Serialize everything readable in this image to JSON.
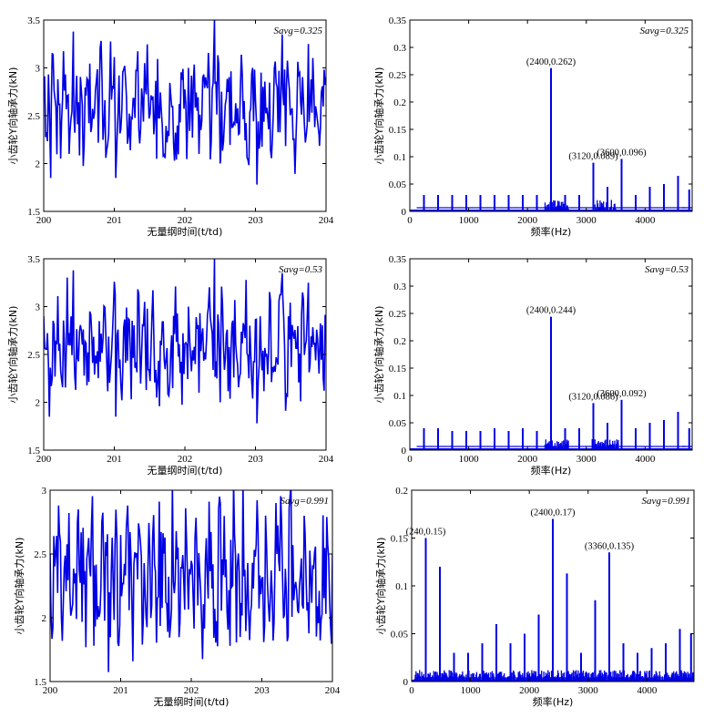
{
  "chart_data": [
    {
      "id": "p1",
      "type": "line",
      "xlabel": "无量纲时间(t/td)",
      "ylabel": "小齿轮Y向轴承力(kN)",
      "xlim": [
        200,
        204
      ],
      "ylim": [
        1.5,
        3.5
      ],
      "xticks": [
        "200",
        "201",
        "202",
        "203",
        "204"
      ],
      "yticks": [
        "1.5",
        "2",
        "2.5",
        "3",
        "3.5"
      ],
      "annotation": "Savg=0.325",
      "signal": {
        "mean": 2.6,
        "amp": 0.42,
        "seed": 3
      },
      "series": [
        {
          "color": "#0000e6",
          "points": [
            [
              200.0,
              2.9
            ],
            [
              200.1,
              1.85
            ],
            [
              200.42,
              3.38
            ],
            [
              201.02,
              1.85
            ],
            [
              201.43,
              3.05
            ],
            [
              201.6,
              2.05
            ],
            [
              202.05,
              3.0
            ],
            [
              202.2,
              2.1
            ],
            [
              202.42,
              3.52
            ],
            [
              202.5,
              2.0
            ],
            [
              203.02,
              1.78
            ],
            [
              203.38,
              3.35
            ],
            [
              203.75,
              3.25
            ],
            [
              203.9,
              2.3
            ],
            [
              204.0,
              2.9
            ]
          ]
        }
      ]
    },
    {
      "id": "p2",
      "type": "line",
      "xlabel": "频率(Hz)",
      "ylabel": "小齿轮Y向轴承力(kN)",
      "xlim": [
        0,
        4800
      ],
      "ylim": [
        0,
        0.35
      ],
      "xticks": [
        "0",
        "1000",
        "2000",
        "3000",
        "4000"
      ],
      "yticks": [
        "0",
        "0.05",
        "0.1",
        "0.15",
        "0.2",
        "0.25",
        "0.3",
        "0.35"
      ],
      "annotation": "Savg=0.325",
      "spikes": [
        [
          240,
          0.03
        ],
        [
          480,
          0.03
        ],
        [
          720,
          0.03
        ],
        [
          960,
          0.03
        ],
        [
          1200,
          0.03
        ],
        [
          1440,
          0.03
        ],
        [
          1680,
          0.03
        ],
        [
          1920,
          0.03
        ],
        [
          2160,
          0.03
        ],
        [
          2400,
          0.262
        ],
        [
          2640,
          0.03
        ],
        [
          2880,
          0.03
        ],
        [
          3120,
          0.089
        ],
        [
          3360,
          0.045
        ],
        [
          3600,
          0.096
        ],
        [
          3840,
          0.03
        ],
        [
          4080,
          0.045
        ],
        [
          4320,
          0.05
        ],
        [
          4560,
          0.065
        ],
        [
          4750,
          0.04
        ]
      ],
      "clusters": [
        [
          2300,
          2700
        ],
        [
          3150,
          3500
        ]
      ],
      "peak_labels": [
        {
          "x": 2400,
          "y": 0.262,
          "text": "(2400,0.262)"
        },
        {
          "x": 3120,
          "y": 0.089,
          "text": "(3120,0.089)"
        },
        {
          "x": 3600,
          "y": 0.096,
          "text": "(3600,0.096)"
        }
      ]
    },
    {
      "id": "p3",
      "type": "line",
      "xlabel": "无量纲时间(t/td)",
      "ylabel": "小齿轮Y向轴承力(kN)",
      "xlim": [
        200,
        204
      ],
      "ylim": [
        1.5,
        3.5
      ],
      "xticks": [
        "200",
        "201",
        "202",
        "203",
        "204"
      ],
      "yticks": [
        "1.5",
        "2",
        "2.5",
        "3",
        "3.5"
      ],
      "annotation": "Savg=0.53",
      "signal": {
        "mean": 2.6,
        "amp": 0.42,
        "seed": 7
      },
      "series": [
        {
          "color": "#0000e6",
          "points": [
            [
              200.0,
              2.9
            ],
            [
              200.08,
              1.85
            ],
            [
              200.42,
              3.38
            ],
            [
              201.02,
              1.85
            ],
            [
              201.43,
              3.05
            ],
            [
              201.6,
              2.05
            ],
            [
              202.05,
              3.0
            ],
            [
              202.2,
              2.1
            ],
            [
              202.42,
              3.52
            ],
            [
              202.5,
              2.0
            ],
            [
              203.02,
              1.78
            ],
            [
              203.38,
              3.35
            ],
            [
              203.75,
              3.25
            ],
            [
              203.9,
              2.3
            ],
            [
              204.0,
              2.9
            ]
          ]
        }
      ]
    },
    {
      "id": "p4",
      "type": "line",
      "xlabel": "频率(Hz)",
      "ylabel": "小齿轮Y向轴承力(kN)",
      "xlim": [
        0,
        4800
      ],
      "ylim": [
        0,
        0.35
      ],
      "xticks": [
        "0",
        "1000",
        "2000",
        "3000",
        "4000"
      ],
      "yticks": [
        "0",
        "0.05",
        "0.1",
        "0.15",
        "0.2",
        "0.25",
        "0.3",
        "0.35"
      ],
      "annotation": "Savg=0.53",
      "spikes": [
        [
          240,
          0.04
        ],
        [
          480,
          0.04
        ],
        [
          720,
          0.035
        ],
        [
          960,
          0.035
        ],
        [
          1200,
          0.035
        ],
        [
          1440,
          0.04
        ],
        [
          1680,
          0.035
        ],
        [
          1920,
          0.04
        ],
        [
          2160,
          0.035
        ],
        [
          2400,
          0.244
        ],
        [
          2640,
          0.04
        ],
        [
          2880,
          0.04
        ],
        [
          3120,
          0.086
        ],
        [
          3360,
          0.05
        ],
        [
          3600,
          0.092
        ],
        [
          3840,
          0.04
        ],
        [
          4080,
          0.05
        ],
        [
          4320,
          0.055
        ],
        [
          4560,
          0.07
        ],
        [
          4750,
          0.04
        ]
      ],
      "clusters": [
        [
          2300,
          2700
        ],
        [
          3100,
          3550
        ]
      ],
      "peak_labels": [
        {
          "x": 2400,
          "y": 0.244,
          "text": "(2400,0.244)"
        },
        {
          "x": 3120,
          "y": 0.086,
          "text": "(3120,0.086)"
        },
        {
          "x": 3600,
          "y": 0.092,
          "text": "(3600,0.092)"
        }
      ]
    },
    {
      "id": "p5",
      "type": "line",
      "xlabel": "无量纲时间(t/td)",
      "ylabel": "小齿轮Y向轴承力(kN)",
      "xlim": [
        200,
        204
      ],
      "ylim": [
        1.5,
        3
      ],
      "xticks": [
        "200",
        "201",
        "202",
        "203",
        "204"
      ],
      "yticks": [
        "1.5",
        "2",
        "2.5",
        "3"
      ],
      "annotation": "Savg=0.991",
      "signal": {
        "mean": 2.32,
        "amp": 0.42,
        "seed": 11
      },
      "series": [
        {
          "color": "#0000e6",
          "points": [
            [
              200.0,
              2.5
            ],
            [
              200.12,
              2.88
            ],
            [
              200.4,
              2.85
            ],
            [
              200.62,
              1.78
            ],
            [
              201.1,
              2.88
            ],
            [
              202.4,
              2.95
            ],
            [
              202.55,
              1.78
            ],
            [
              203.2,
              2.9
            ],
            [
              203.6,
              2.8
            ],
            [
              204.0,
              2.5
            ]
          ]
        }
      ]
    },
    {
      "id": "p6",
      "type": "line",
      "xlabel": "频率(Hz)",
      "ylabel": "小齿轮Y向轴承力(kN)",
      "xlim": [
        0,
        4800
      ],
      "ylim": [
        0,
        0.2
      ],
      "xticks": [
        "0",
        "1000",
        "2000",
        "3000",
        "4000"
      ],
      "yticks": [
        "0",
        "0.05",
        "0.1",
        "0.15",
        "0.2"
      ],
      "annotation": "Savg=0.991",
      "spikes": [
        [
          240,
          0.15
        ],
        [
          480,
          0.12
        ],
        [
          720,
          0.03
        ],
        [
          960,
          0.03
        ],
        [
          1200,
          0.04
        ],
        [
          1440,
          0.06
        ],
        [
          1680,
          0.04
        ],
        [
          1920,
          0.05
        ],
        [
          2160,
          0.07
        ],
        [
          2400,
          0.17
        ],
        [
          2640,
          0.113
        ],
        [
          2880,
          0.03
        ],
        [
          3120,
          0.085
        ],
        [
          3360,
          0.135
        ],
        [
          3600,
          0.04
        ],
        [
          3840,
          0.03
        ],
        [
          4080,
          0.035
        ],
        [
          4320,
          0.04
        ],
        [
          4560,
          0.055
        ],
        [
          4750,
          0.05
        ]
      ],
      "clusters": [
        [
          50,
          4800
        ]
      ],
      "peak_labels": [
        {
          "x": 240,
          "y": 0.15,
          "text": "(240,0.15)"
        },
        {
          "x": 2400,
          "y": 0.17,
          "text": "(2400,0.17)"
        },
        {
          "x": 3360,
          "y": 0.135,
          "text": "(3360,0.135)"
        }
      ]
    }
  ]
}
